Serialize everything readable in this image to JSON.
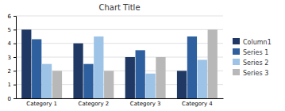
{
  "chart_data": {
    "type": "bar",
    "title": "Chart Title",
    "categories": [
      "Category 1",
      "Category 2",
      "Category 3",
      "Category 4"
    ],
    "series": [
      {
        "name": "Column1",
        "color": "#1f3864",
        "values": [
          5.0,
          4.0,
          3.0,
          2.0
        ]
      },
      {
        "name": "Series 1",
        "color": "#2e5f9e",
        "values": [
          4.3,
          2.5,
          3.5,
          4.5
        ]
      },
      {
        "name": "Series 2",
        "color": "#9dc3e6",
        "values": [
          2.5,
          4.5,
          1.8,
          2.8
        ]
      },
      {
        "name": "Series 3",
        "color": "#b8b8b8",
        "values": [
          2.0,
          2.0,
          3.0,
          5.0
        ]
      }
    ],
    "ylim": [
      0,
      6
    ],
    "yticks": [
      0,
      1,
      2,
      3,
      4,
      5,
      6
    ],
    "grid": true,
    "legend": "right"
  }
}
